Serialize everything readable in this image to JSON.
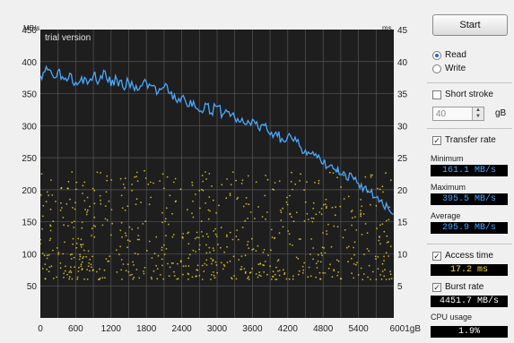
{
  "chart_data": {
    "type": "line",
    "title": "",
    "watermark": "trial version",
    "y_left_unit": "MB/s",
    "y_right_unit": "ms",
    "x_unit": "gB",
    "xlim": [
      0,
      6001
    ],
    "ylim_left": [
      0,
      450
    ],
    "ylim_right": [
      0,
      45
    ],
    "x_ticks": [
      "0",
      "600",
      "1200",
      "1800",
      "2400",
      "3000",
      "3600",
      "4200",
      "4800",
      "5400",
      "6001gB"
    ],
    "y_left_ticks": [
      "450",
      "400",
      "350",
      "300",
      "250",
      "200",
      "150",
      "100",
      "50"
    ],
    "y_right_ticks": [
      "45",
      "40",
      "35",
      "30",
      "25",
      "20",
      "15",
      "10",
      "5"
    ],
    "grid": true,
    "series": [
      {
        "label": "Transfer rate (MB/s)",
        "color": "#4aa8ff",
        "x": [
          0,
          100,
          200,
          300,
          400,
          500,
          600,
          700,
          800,
          900,
          1000,
          1100,
          1200,
          1300,
          1400,
          1500,
          1600,
          1700,
          1800,
          1900,
          2000,
          2100,
          2200,
          2300,
          2400,
          2500,
          2600,
          2700,
          2800,
          2900,
          3000,
          3100,
          3200,
          3300,
          3400,
          3500,
          3600,
          3700,
          3800,
          3900,
          4000,
          4100,
          4200,
          4300,
          4400,
          4500,
          4600,
          4700,
          4800,
          4900,
          5000,
          5100,
          5200,
          5300,
          5400,
          5500,
          5600,
          5700,
          5800,
          5900,
          6001
        ],
        "y": [
          378,
          392,
          380,
          386,
          372,
          382,
          368,
          376,
          365,
          378,
          370,
          385,
          362,
          372,
          360,
          368,
          355,
          362,
          368,
          362,
          352,
          360,
          350,
          340,
          345,
          330,
          338,
          322,
          335,
          320,
          330,
          318,
          322,
          312,
          306,
          302,
          310,
          296,
          300,
          286,
          290,
          280,
          284,
          276,
          268,
          262,
          256,
          250,
          240,
          236,
          232,
          224,
          216,
          220,
          210,
          204,
          196,
          188,
          182,
          172,
          162
        ]
      }
    ],
    "scatter_color": "#ffe033",
    "scatter_note": "Access time samples (ms) spread across the capacity"
  },
  "panel": {
    "start_label": "Start",
    "read_label": "Read",
    "write_label": "Write",
    "short_stroke_label": "Short stroke",
    "short_stroke_value": "40",
    "short_stroke_unit": "gB",
    "transfer_rate_label": "Transfer rate",
    "minimum_label": "Minimum",
    "minimum_value": "161.1 MB/s",
    "maximum_label": "Maximum",
    "maximum_value": "395.5 MB/s",
    "average_label": "Average",
    "average_value": "295.9 MB/s",
    "access_time_label": "Access time",
    "access_time_value": "17.2 ms",
    "burst_rate_label": "Burst rate",
    "burst_rate_value": "4451.7 MB/s",
    "cpu_usage_label": "CPU usage",
    "cpu_usage_value": "1.9%"
  }
}
